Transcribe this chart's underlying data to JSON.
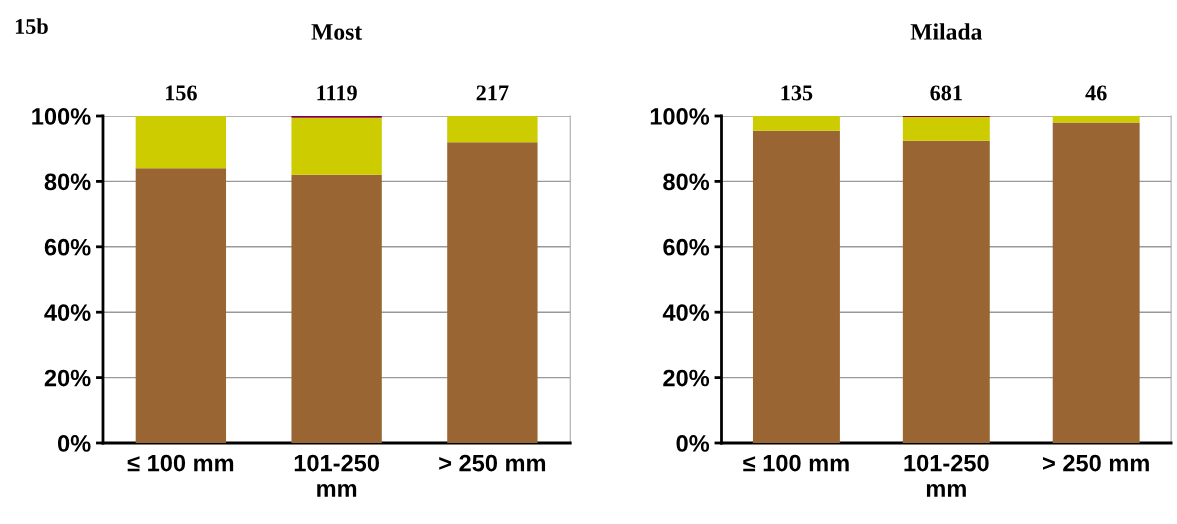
{
  "chart_data": [
    {
      "type": "bar",
      "stacked": true,
      "title": "Most",
      "categories": [
        "≤ 100 mm",
        "101-250\nmm",
        "> 250 mm"
      ],
      "series": [
        {
          "color": "#996633",
          "values": [
            84,
            82,
            92
          ]
        },
        {
          "color": "#cccc00",
          "values": [
            16,
            17.5,
            8
          ]
        },
        {
          "color": "#800040",
          "values": [
            0,
            0.5,
            0
          ]
        }
      ],
      "annotations": [
        "15b",
        {
          "text": "156",
          "x": "≤ 100 mm",
          "y": 100
        },
        {
          "text": "1119",
          "x": "101-250\nmm",
          "y": 100
        },
        {
          "text": "217",
          "x": "> 250 mm",
          "y": 100
        }
      ],
      "ylim": [
        0,
        100
      ],
      "yticks": [
        {
          "value": 0,
          "label": "0%"
        },
        {
          "value": 20,
          "label": "20%"
        },
        {
          "value": 40,
          "label": "40%"
        },
        {
          "value": 60,
          "label": "60%"
        },
        {
          "value": 80,
          "label": "80%"
        },
        {
          "value": 100,
          "label": "100%"
        }
      ],
      "grid": "y"
    },
    {
      "type": "bar",
      "stacked": true,
      "title": "Milada",
      "categories": [
        "≤ 100 mm",
        "101-250\nmm",
        "> 250 mm"
      ],
      "series": [
        {
          "color": "#996633",
          "values": [
            95.5,
            92.4,
            98
          ]
        },
        {
          "color": "#cccc00",
          "values": [
            4.5,
            7.3,
            2
          ]
        },
        {
          "color": "#800040",
          "values": [
            0,
            0.3,
            0
          ]
        }
      ],
      "annotations": [
        {
          "text": "135",
          "x": "≤ 100 mm",
          "y": 100
        },
        {
          "text": "681",
          "x": "101-250\nmm",
          "y": 100
        },
        {
          "text": "46",
          "x": "> 250 mm",
          "y": 100
        }
      ],
      "ylim": [
        0,
        100
      ],
      "yticks": [
        {
          "value": 0,
          "label": "0%"
        },
        {
          "value": 20,
          "label": "20%"
        },
        {
          "value": 40,
          "label": "40%"
        },
        {
          "value": 60,
          "label": "60%"
        },
        {
          "value": 80,
          "label": "80%"
        },
        {
          "value": 100,
          "label": "100%"
        }
      ],
      "grid": "y"
    }
  ]
}
